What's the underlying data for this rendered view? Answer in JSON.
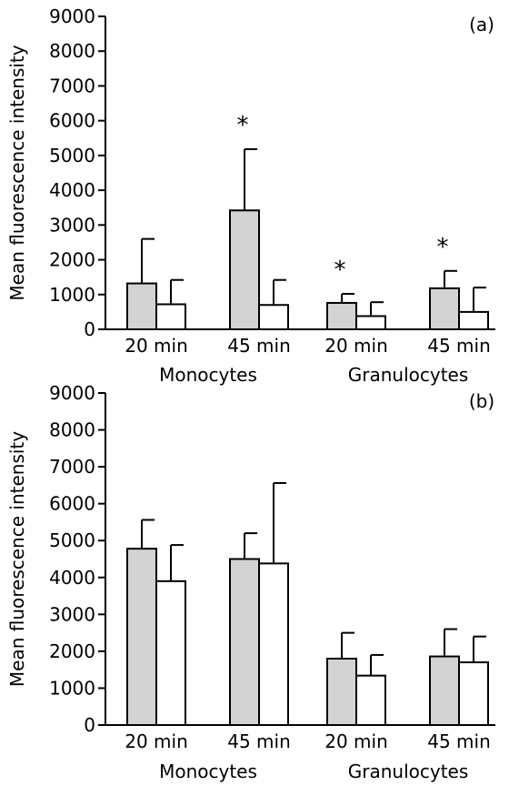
{
  "chart_data": [
    {
      "type": "bar",
      "panel_label": "(a)",
      "ylabel": "Mean fluorescence intensity",
      "ylim": [
        0,
        9000
      ],
      "yticks": [
        "0",
        "1000",
        "2000",
        "3000",
        "4000",
        "5000",
        "6000",
        "7000",
        "8000",
        "9000"
      ],
      "categories": [
        "20 min",
        "45 min",
        "20 min",
        "45 min"
      ],
      "groups": [
        "Monocytes",
        "Granulocytes"
      ],
      "series": [
        {
          "fill": "#d3d3d3",
          "values": [
            1320,
            3420,
            760,
            1180
          ],
          "error": [
            1280,
            1760,
            260,
            500
          ]
        },
        {
          "fill": "#ffffff",
          "values": [
            720,
            700,
            380,
            500
          ],
          "error": [
            700,
            720,
            400,
            700
          ]
        }
      ],
      "annotations": [
        {
          "text": "*",
          "category": 1
        },
        {
          "text": "*",
          "category": 2
        },
        {
          "text": "*",
          "category": 3
        }
      ]
    },
    {
      "type": "bar",
      "panel_label": "(b)",
      "ylabel": "Mean fluorescence intensity",
      "ylim": [
        0,
        9000
      ],
      "yticks": [
        "0",
        "1000",
        "2000",
        "3000",
        "4000",
        "5000",
        "6000",
        "7000",
        "8000",
        "9000"
      ],
      "categories": [
        "20 min",
        "45 min",
        "20 min",
        "45 min"
      ],
      "groups": [
        "Monocytes",
        "Granulocytes"
      ],
      "series": [
        {
          "fill": "#d3d3d3",
          "values": [
            4780,
            4500,
            1800,
            1860
          ],
          "error": [
            780,
            700,
            700,
            740
          ]
        },
        {
          "fill": "#ffffff",
          "values": [
            3900,
            4380,
            1340,
            1700
          ],
          "error": [
            980,
            2180,
            560,
            700
          ]
        }
      ],
      "annotations": []
    }
  ]
}
